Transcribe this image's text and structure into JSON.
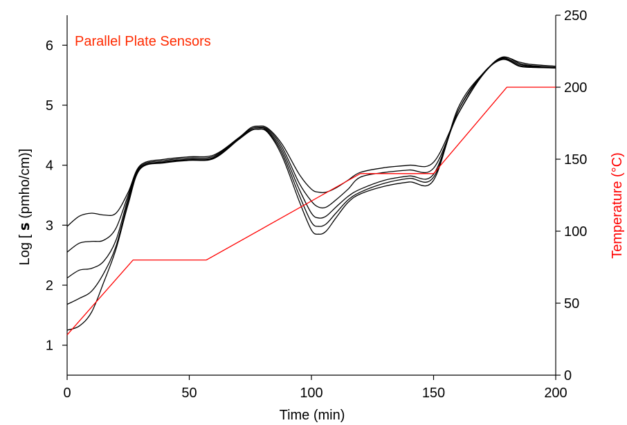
{
  "chart_data": {
    "type": "line",
    "title": "",
    "annotation": "Parallel Plate Sensors",
    "xlabel": "Time (min)",
    "ylabel": "Log [ σ (pmho/cm)]",
    "ylabel_parts": {
      "pre": "Log [ ",
      "sym": "s",
      "post": " (pmho/cm)]"
    },
    "y2label": "Temperature (°C)",
    "xlim": [
      0,
      200
    ],
    "ylim": [
      0.5,
      6.5
    ],
    "y2lim": [
      0,
      250
    ],
    "xticks": [
      0,
      50,
      100,
      150,
      200
    ],
    "yticks": [
      1,
      2,
      3,
      4,
      5,
      6
    ],
    "y2ticks": [
      0,
      50,
      100,
      150,
      200,
      250
    ],
    "grid": false,
    "colors": {
      "conductivity": "#000000",
      "temperature": "#ff0000",
      "annotation": "#ff2a00"
    },
    "series": [
      {
        "axis": "left",
        "x": [
          0,
          5,
          10,
          15,
          20,
          25,
          30,
          40,
          50,
          60,
          70,
          75,
          78,
          82,
          88,
          95,
          100,
          103,
          106,
          110,
          115,
          120,
          130,
          140,
          150,
          160,
          170,
          178,
          185,
          190,
          200
        ],
        "values": [
          2.98,
          3.15,
          3.2,
          3.17,
          3.2,
          3.55,
          4.0,
          4.1,
          4.14,
          4.17,
          4.45,
          4.62,
          4.65,
          4.62,
          4.35,
          3.85,
          3.6,
          3.55,
          3.55,
          3.62,
          3.75,
          3.88,
          3.96,
          4.0,
          4.05,
          4.85,
          5.5,
          5.79,
          5.72,
          5.68,
          5.65
        ]
      },
      {
        "axis": "left",
        "x": [
          0,
          5,
          10,
          15,
          20,
          25,
          30,
          40,
          50,
          60,
          70,
          75,
          78,
          82,
          88,
          95,
          100,
          103,
          106,
          110,
          115,
          120,
          130,
          140,
          150,
          160,
          170,
          178,
          185,
          190,
          200
        ],
        "values": [
          2.55,
          2.7,
          2.73,
          2.75,
          2.95,
          3.5,
          3.98,
          4.08,
          4.12,
          4.15,
          4.45,
          4.6,
          4.63,
          4.6,
          4.3,
          3.7,
          3.4,
          3.3,
          3.3,
          3.42,
          3.6,
          3.8,
          3.88,
          3.92,
          3.95,
          4.85,
          5.5,
          5.8,
          5.7,
          5.66,
          5.63
        ]
      },
      {
        "axis": "left",
        "x": [
          0,
          5,
          10,
          15,
          20,
          25,
          30,
          40,
          50,
          60,
          70,
          75,
          78,
          82,
          88,
          95,
          100,
          103,
          106,
          110,
          115,
          120,
          130,
          140,
          150,
          160,
          170,
          178,
          185,
          190,
          200
        ],
        "values": [
          2.12,
          2.25,
          2.28,
          2.4,
          2.75,
          3.45,
          3.96,
          4.06,
          4.1,
          4.13,
          4.44,
          4.6,
          4.62,
          4.58,
          4.25,
          3.6,
          3.2,
          3.12,
          3.15,
          3.3,
          3.48,
          3.6,
          3.75,
          3.82,
          3.85,
          4.9,
          5.5,
          5.78,
          5.68,
          5.65,
          5.62
        ]
      },
      {
        "axis": "left",
        "x": [
          0,
          5,
          10,
          15,
          20,
          25,
          30,
          40,
          50,
          60,
          70,
          75,
          78,
          82,
          88,
          95,
          100,
          103,
          106,
          110,
          115,
          120,
          130,
          140,
          150,
          160,
          170,
          178,
          185,
          190,
          200
        ],
        "values": [
          1.68,
          1.78,
          1.9,
          2.2,
          2.65,
          3.4,
          3.95,
          4.05,
          4.09,
          4.12,
          4.43,
          4.58,
          4.6,
          4.56,
          4.2,
          3.5,
          3.05,
          2.98,
          3.02,
          3.2,
          3.42,
          3.55,
          3.7,
          3.78,
          3.8,
          4.9,
          5.52,
          5.77,
          5.66,
          5.64,
          5.62
        ]
      },
      {
        "axis": "left",
        "x": [
          0,
          5,
          10,
          15,
          20,
          25,
          30,
          40,
          50,
          60,
          70,
          75,
          78,
          82,
          88,
          95,
          100,
          103,
          106,
          110,
          115,
          120,
          130,
          140,
          150,
          160,
          170,
          178,
          185,
          190,
          200
        ],
        "values": [
          1.25,
          1.32,
          1.55,
          2.05,
          2.6,
          3.35,
          3.94,
          4.04,
          4.08,
          4.11,
          4.42,
          4.57,
          4.6,
          4.55,
          4.15,
          3.4,
          2.92,
          2.85,
          2.9,
          3.12,
          3.38,
          3.52,
          3.65,
          3.72,
          3.75,
          4.95,
          5.52,
          5.76,
          5.65,
          5.63,
          5.62
        ]
      },
      {
        "axis": "right",
        "name": "",
        "x": [
          0,
          27,
          57,
          120,
          150,
          180,
          200
        ],
        "values": [
          28,
          80,
          80,
          140,
          140,
          200,
          200
        ]
      }
    ]
  }
}
